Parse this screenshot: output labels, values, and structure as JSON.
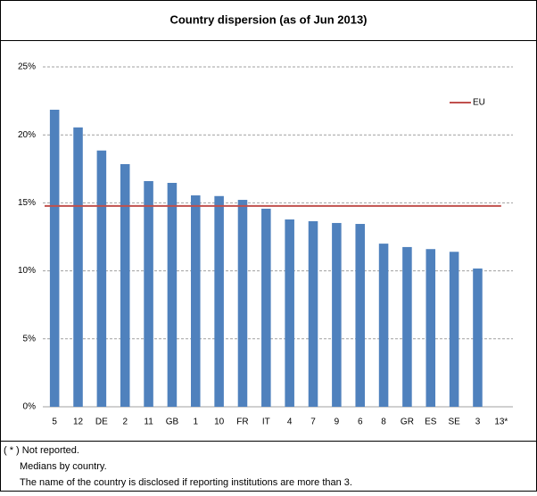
{
  "chart_data": {
    "type": "bar",
    "title": "Country dispersion (as of Jun 2013)",
    "categories": [
      "5",
      "12",
      "DE",
      "2",
      "11",
      "GB",
      "1",
      "10",
      "FR",
      "IT",
      "4",
      "7",
      "9",
      "6",
      "8",
      "GR",
      "ES",
      "SE",
      "3",
      "13*"
    ],
    "values": [
      21.85,
      20.55,
      18.85,
      17.85,
      16.6,
      16.47,
      15.55,
      15.5,
      15.22,
      14.57,
      13.78,
      13.65,
      13.52,
      13.45,
      12.0,
      11.75,
      11.6,
      11.4,
      10.17,
      null
    ],
    "color": "#4f81bd",
    "reference_line": {
      "name": "EU",
      "value": 14.77,
      "color": "#c0504d"
    },
    "ylim": [
      0,
      25
    ],
    "yticks": [
      {
        "value": 0,
        "label": "0%"
      },
      {
        "value": 5,
        "label": "5%"
      },
      {
        "value": 10,
        "label": "10%"
      },
      {
        "value": 15,
        "label": "15%"
      },
      {
        "value": 20,
        "label": "20%"
      },
      {
        "value": 25,
        "label": "25%"
      }
    ],
    "grid": true,
    "legend": "top-right",
    "notes": [
      "( * ) Not reported.",
      "Medians by country.",
      "The name of the country is disclosed if reporting institutions are more than 3."
    ]
  }
}
